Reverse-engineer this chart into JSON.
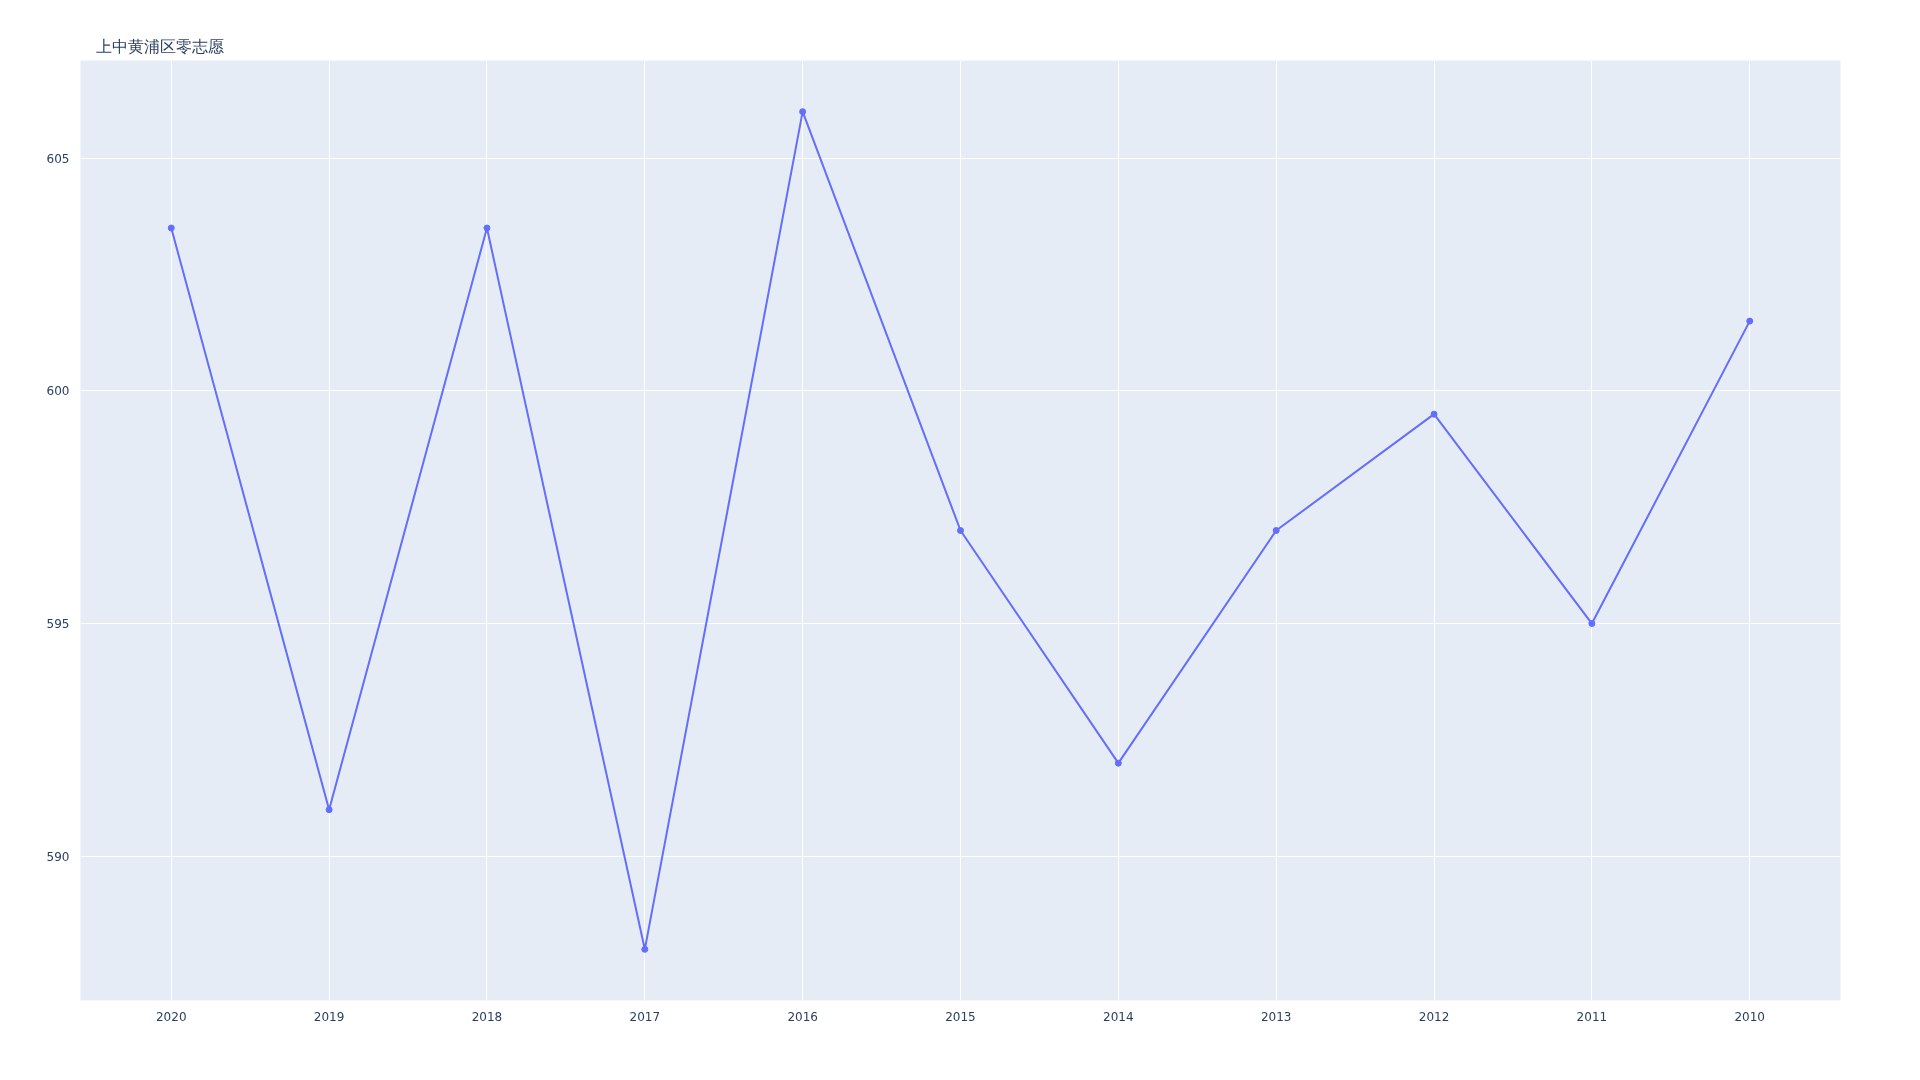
{
  "chart_data": {
    "type": "line",
    "title": "上中黄浦区零志愿",
    "categories": [
      "2020",
      "2019",
      "2018",
      "2017",
      "2016",
      "2015",
      "2014",
      "2013",
      "2012",
      "2011",
      "2010"
    ],
    "series": [
      {
        "color": "#636efa",
        "values": [
          603.5,
          591,
          603.5,
          588,
          606,
          597,
          592,
          597,
          599.5,
          595,
          601.5
        ]
      }
    ],
    "ylim": [
      586.9,
      607.1
    ],
    "yticks": [
      590,
      595,
      600,
      605
    ],
    "grid": true,
    "marker": "circle",
    "line_style": "solid"
  }
}
